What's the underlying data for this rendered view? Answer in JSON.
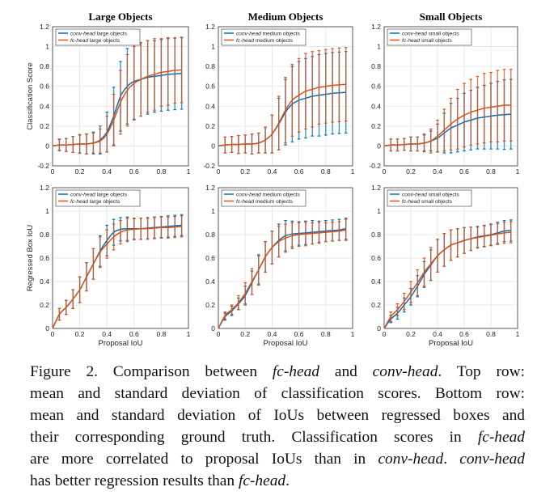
{
  "colors": {
    "conv": "#0072BD",
    "fc": "#D95319"
  },
  "x": [
    0,
    0.05,
    0.1,
    0.15,
    0.2,
    0.25,
    0.3,
    0.35,
    0.4,
    0.45,
    0.5,
    0.55,
    0.6,
    0.65,
    0.7,
    0.75,
    0.8,
    0.85,
    0.9,
    0.95
  ],
  "chart_data": [
    {
      "type": "line",
      "title": "Large Objects",
      "ylabel": "Classification Score",
      "xlabel": "",
      "xlim": [
        0,
        1
      ],
      "ylim": [
        -0.2,
        1.2
      ],
      "xticks": [
        "0",
        "0.2",
        "0.4",
        "0.6",
        "0.8",
        "1"
      ],
      "yticks": [
        "-0.2",
        "0",
        "0.2",
        "0.4",
        "0.6",
        "0.8",
        "1",
        "1.2"
      ],
      "grid": true,
      "legend": "top-left",
      "series": [
        {
          "key": "conv",
          "name_italic": "conv-head",
          "name_rest": " large objects",
          "mean": [
            0,
            0.01,
            0.01,
            0.015,
            0.02,
            0.02,
            0.03,
            0.06,
            0.14,
            0.3,
            0.5,
            0.6,
            0.65,
            0.67,
            0.69,
            0.7,
            0.71,
            0.72,
            0.725,
            0.73
          ],
          "std": [
            0,
            0.055,
            0.065,
            0.08,
            0.09,
            0.1,
            0.11,
            0.14,
            0.2,
            0.29,
            0.35,
            0.38,
            0.38,
            0.37,
            0.37,
            0.36,
            0.36,
            0.36,
            0.36,
            0.36
          ]
        },
        {
          "key": "fc",
          "name_italic": "fc-head",
          "name_rest": " large objects",
          "mean": [
            0,
            0.01,
            0.01,
            0.015,
            0.02,
            0.02,
            0.03,
            0.05,
            0.12,
            0.26,
            0.44,
            0.56,
            0.63,
            0.67,
            0.7,
            0.72,
            0.74,
            0.75,
            0.76,
            0.765
          ],
          "std": [
            0,
            0.06,
            0.065,
            0.08,
            0.095,
            0.1,
            0.1,
            0.12,
            0.18,
            0.26,
            0.32,
            0.36,
            0.37,
            0.37,
            0.36,
            0.36,
            0.34,
            0.34,
            0.33,
            0.33
          ]
        }
      ]
    },
    {
      "type": "line",
      "title": "Medium Objects",
      "ylabel": "",
      "xlabel": "",
      "xlim": [
        0,
        1
      ],
      "ylim": [
        -0.2,
        1.2
      ],
      "xticks": [
        "0",
        "0.2",
        "0.4",
        "0.6",
        "0.8",
        "1"
      ],
      "yticks": [
        "-0.2",
        "0",
        "0.2",
        "0.4",
        "0.6",
        "0.8",
        "1",
        "1.2"
      ],
      "grid": true,
      "legend": "top-left",
      "series": [
        {
          "key": "conv",
          "name_italic": "conv-head",
          "name_rest": " medium objects",
          "mean": [
            0,
            0.01,
            0.015,
            0.015,
            0.02,
            0.02,
            0.03,
            0.06,
            0.12,
            0.22,
            0.34,
            0.42,
            0.46,
            0.48,
            0.5,
            0.51,
            0.52,
            0.53,
            0.535,
            0.54
          ],
          "std": [
            0,
            0.08,
            0.08,
            0.09,
            0.09,
            0.1,
            0.1,
            0.13,
            0.19,
            0.26,
            0.33,
            0.38,
            0.39,
            0.4,
            0.4,
            0.41,
            0.41,
            0.41,
            0.41,
            0.41
          ]
        },
        {
          "key": "fc",
          "name_italic": "fc-head",
          "name_rest": " medium objects",
          "mean": [
            0,
            0.01,
            0.015,
            0.015,
            0.02,
            0.02,
            0.03,
            0.06,
            0.12,
            0.23,
            0.36,
            0.46,
            0.51,
            0.55,
            0.57,
            0.59,
            0.6,
            0.61,
            0.615,
            0.62
          ],
          "std": [
            0,
            0.08,
            0.08,
            0.09,
            0.09,
            0.1,
            0.1,
            0.13,
            0.19,
            0.27,
            0.33,
            0.36,
            0.37,
            0.38,
            0.38,
            0.37,
            0.37,
            0.37,
            0.37,
            0.37
          ]
        }
      ]
    },
    {
      "type": "line",
      "title": "Small Objects",
      "ylabel": "",
      "xlabel": "",
      "xlim": [
        0,
        1
      ],
      "ylim": [
        -0.2,
        1.2
      ],
      "xticks": [
        "0",
        "0.2",
        "0.4",
        "0.6",
        "0.8",
        "1"
      ],
      "yticks": [
        "-0.2",
        "0",
        "0.2",
        "0.4",
        "0.6",
        "0.8",
        "1",
        "1.2"
      ],
      "grid": true,
      "legend": "top-left",
      "series": [
        {
          "key": "conv",
          "name_italic": "conv-head",
          "name_rest": " small objects",
          "mean": [
            0,
            0.01,
            0.01,
            0.015,
            0.02,
            0.02,
            0.03,
            0.05,
            0.08,
            0.13,
            0.18,
            0.21,
            0.24,
            0.26,
            0.28,
            0.29,
            0.3,
            0.31,
            0.315,
            0.32
          ],
          "std": [
            0,
            0.06,
            0.06,
            0.06,
            0.07,
            0.07,
            0.08,
            0.1,
            0.14,
            0.2,
            0.25,
            0.27,
            0.29,
            0.3,
            0.31,
            0.32,
            0.33,
            0.34,
            0.35,
            0.35
          ]
        },
        {
          "key": "fc",
          "name_italic": "fc-head",
          "name_rest": " small objects",
          "mean": [
            0,
            0.01,
            0.01,
            0.015,
            0.02,
            0.02,
            0.03,
            0.05,
            0.1,
            0.16,
            0.22,
            0.27,
            0.31,
            0.34,
            0.36,
            0.38,
            0.39,
            0.4,
            0.41,
            0.41
          ],
          "std": [
            0,
            0.06,
            0.06,
            0.06,
            0.07,
            0.07,
            0.09,
            0.12,
            0.16,
            0.21,
            0.26,
            0.3,
            0.32,
            0.33,
            0.34,
            0.35,
            0.35,
            0.36,
            0.36,
            0.36
          ]
        }
      ]
    },
    {
      "type": "line",
      "title": "",
      "ylabel": "Regressed Box IoU",
      "xlabel": "Proposal IoU",
      "xlim": [
        0,
        1
      ],
      "ylim": [
        0,
        1.2
      ],
      "xticks": [
        "0",
        "0.2",
        "0.4",
        "0.6",
        "0.8",
        "1"
      ],
      "yticks": [
        "0",
        "0.2",
        "0.4",
        "0.6",
        "0.8",
        "1",
        "1.2"
      ],
      "grid": true,
      "legend": "top-left",
      "series": [
        {
          "key": "conv",
          "name_italic": "conv-head",
          "name_rest": " large objects",
          "mean": [
            0,
            0.12,
            0.18,
            0.25,
            0.33,
            0.44,
            0.55,
            0.66,
            0.75,
            0.82,
            0.845,
            0.85,
            0.85,
            0.85,
            0.855,
            0.86,
            0.865,
            0.87,
            0.875,
            0.88
          ],
          "std": [
            0,
            0.05,
            0.06,
            0.08,
            0.11,
            0.12,
            0.13,
            0.13,
            0.13,
            0.11,
            0.1,
            0.1,
            0.09,
            0.09,
            0.09,
            0.09,
            0.09,
            0.09,
            0.09,
            0.09
          ]
        },
        {
          "key": "fc",
          "name_italic": "fc-head",
          "name_rest": " large objects",
          "mean": [
            0,
            0.12,
            0.18,
            0.25,
            0.33,
            0.44,
            0.55,
            0.65,
            0.72,
            0.78,
            0.82,
            0.84,
            0.845,
            0.85,
            0.85,
            0.855,
            0.86,
            0.86,
            0.865,
            0.87
          ],
          "std": [
            0,
            0.05,
            0.06,
            0.08,
            0.11,
            0.12,
            0.13,
            0.13,
            0.12,
            0.11,
            0.1,
            0.1,
            0.09,
            0.09,
            0.09,
            0.09,
            0.09,
            0.09,
            0.09,
            0.09
          ]
        }
      ]
    },
    {
      "type": "line",
      "title": "",
      "ylabel": "",
      "xlabel": "Proposal IoU",
      "xlim": [
        0,
        1
      ],
      "ylim": [
        0,
        1.2
      ],
      "xticks": [
        "0",
        "0.2",
        "0.4",
        "0.6",
        "0.8",
        "1"
      ],
      "yticks": [
        "0",
        "0.2",
        "0.4",
        "0.6",
        "0.8",
        "1",
        "1.2"
      ],
      "grid": true,
      "legend": "top-left",
      "series": [
        {
          "key": "conv",
          "name_italic": "conv-head",
          "name_rest": " medium objects",
          "mean": [
            0,
            0.1,
            0.15,
            0.21,
            0.28,
            0.39,
            0.5,
            0.61,
            0.69,
            0.75,
            0.79,
            0.805,
            0.81,
            0.815,
            0.82,
            0.825,
            0.83,
            0.835,
            0.84,
            0.85
          ],
          "std": [
            0,
            0.03,
            0.04,
            0.05,
            0.08,
            0.1,
            0.12,
            0.13,
            0.14,
            0.14,
            0.13,
            0.11,
            0.1,
            0.1,
            0.1,
            0.09,
            0.09,
            0.09,
            0.09,
            0.09
          ]
        },
        {
          "key": "fc",
          "name_italic": "fc-head",
          "name_rest": " medium objects",
          "mean": [
            0,
            0.11,
            0.16,
            0.22,
            0.3,
            0.4,
            0.5,
            0.61,
            0.69,
            0.74,
            0.77,
            0.79,
            0.8,
            0.805,
            0.81,
            0.815,
            0.82,
            0.825,
            0.83,
            0.84
          ],
          "std": [
            0,
            0.03,
            0.04,
            0.06,
            0.09,
            0.11,
            0.13,
            0.13,
            0.14,
            0.13,
            0.12,
            0.11,
            0.1,
            0.1,
            0.09,
            0.09,
            0.08,
            0.08,
            0.08,
            0.09
          ]
        }
      ]
    },
    {
      "type": "line",
      "title": "",
      "ylabel": "",
      "xlabel": "Proposal IoU",
      "xlim": [
        0,
        1
      ],
      "ylim": [
        0,
        1.2
      ],
      "xticks": [
        "0",
        "0.2",
        "0.4",
        "0.6",
        "0.8",
        "1"
      ],
      "yticks": [
        "0",
        "0.2",
        "0.4",
        "0.6",
        "0.8",
        "1",
        "1.2"
      ],
      "grid": true,
      "legend": "top-left",
      "series": [
        {
          "key": "conv",
          "name_italic": "conv-head",
          "name_rest": " small objects",
          "mean": [
            0,
            0.08,
            0.13,
            0.2,
            0.27,
            0.36,
            0.46,
            0.54,
            0.62,
            0.67,
            0.71,
            0.73,
            0.75,
            0.765,
            0.78,
            0.79,
            0.8,
            0.815,
            0.83,
            0.835
          ],
          "std": [
            0,
            0.03,
            0.05,
            0.06,
            0.07,
            0.09,
            0.11,
            0.13,
            0.14,
            0.14,
            0.13,
            0.12,
            0.11,
            0.1,
            0.09,
            0.09,
            0.09,
            0.09,
            0.09,
            0.09
          ]
        },
        {
          "key": "fc",
          "name_italic": "fc-head",
          "name_rest": " small objects",
          "mean": [
            0,
            0.1,
            0.16,
            0.23,
            0.31,
            0.39,
            0.48,
            0.55,
            0.62,
            0.67,
            0.71,
            0.73,
            0.75,
            0.765,
            0.775,
            0.785,
            0.795,
            0.805,
            0.815,
            0.82
          ],
          "std": [
            0,
            0.04,
            0.05,
            0.07,
            0.09,
            0.11,
            0.12,
            0.14,
            0.14,
            0.14,
            0.13,
            0.12,
            0.11,
            0.1,
            0.09,
            0.09,
            0.09,
            0.09,
            0.09,
            0.09
          ]
        }
      ]
    }
  ],
  "caption": {
    "lines": [
      [
        {
          "t": "Figure 2.  Comparison between "
        },
        {
          "t": "fc-head",
          "i": true
        },
        {
          "t": " and "
        },
        {
          "t": "conv-head",
          "i": true
        },
        {
          "t": ". Top row:"
        }
      ],
      [
        {
          "t": "mean and standard deviation of classification scores. Bottom row:"
        }
      ],
      [
        {
          "t": "mean and standard deviation of IoUs between regressed boxes and"
        }
      ],
      [
        {
          "t": "their corresponding ground truth. Classification scores in "
        },
        {
          "t": "fc-head",
          "i": true
        }
      ],
      [
        {
          "t": "are more correlated to proposal IoUs than in "
        },
        {
          "t": "conv-head",
          "i": true
        },
        {
          "t": ". "
        },
        {
          "t": "conv-head",
          "i": true
        }
      ],
      [
        {
          "t": "has better regression results than "
        },
        {
          "t": "fc-head",
          "i": true
        },
        {
          "t": "."
        }
      ]
    ]
  }
}
